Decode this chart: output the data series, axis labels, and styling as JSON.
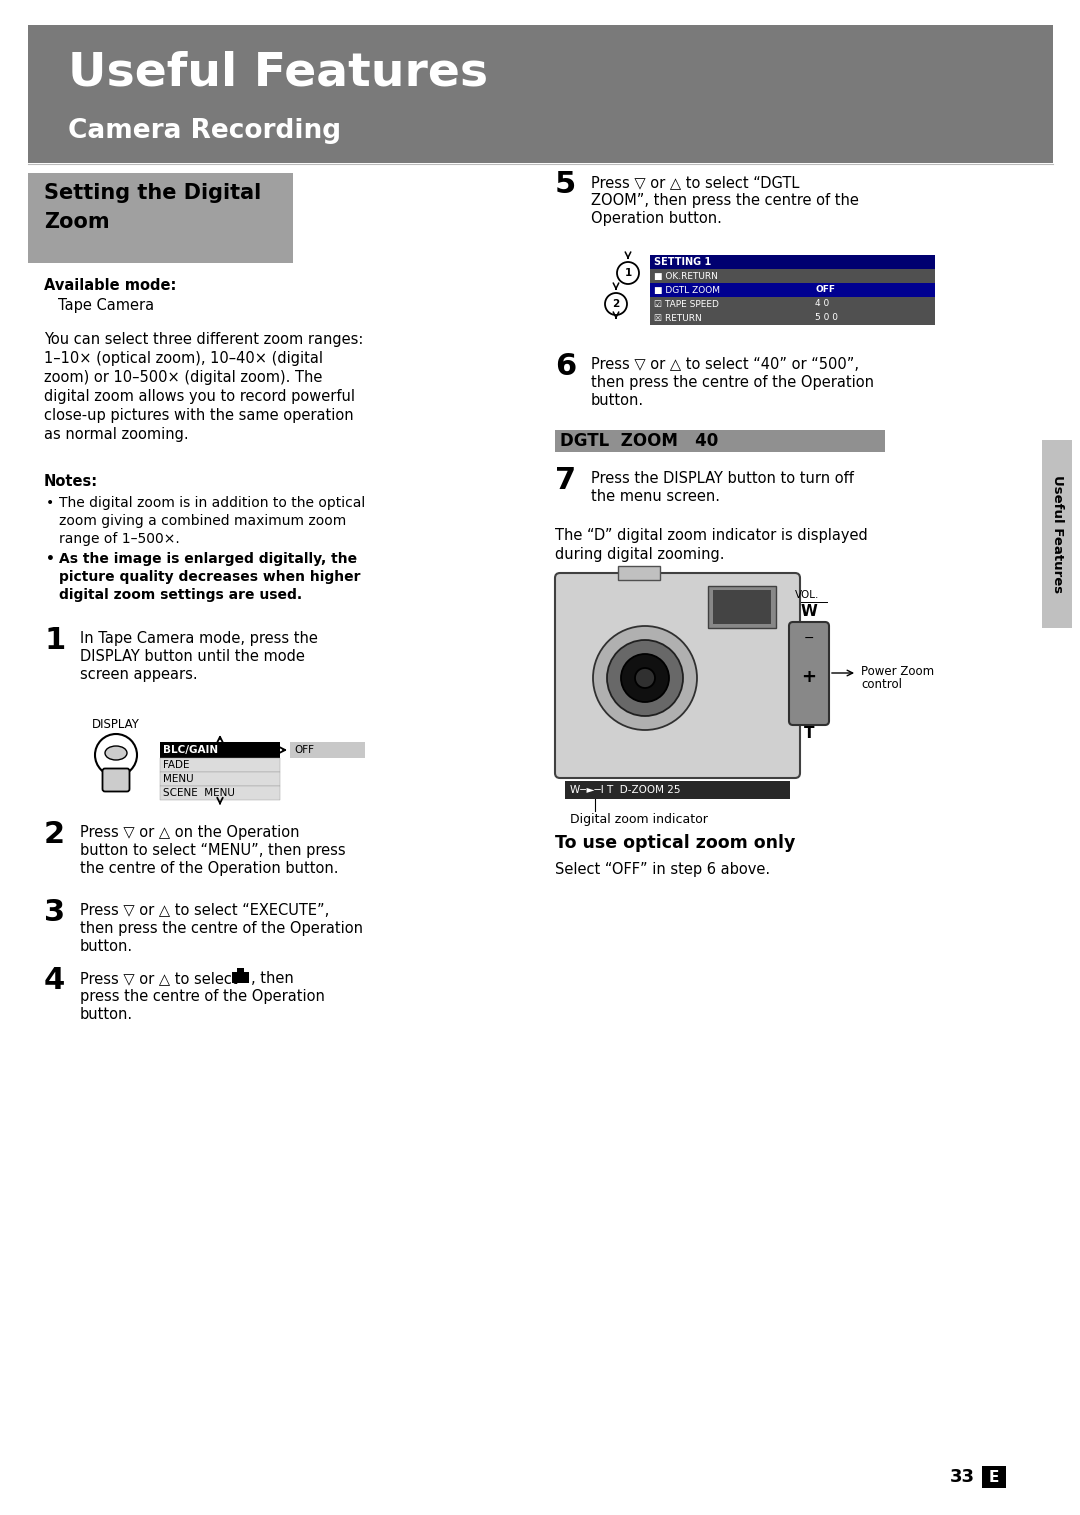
{
  "bg_color": "#ffffff",
  "header_bg": "#7a7a7a",
  "header_title": "Useful Features",
  "header_subtitle": "Camera Recording",
  "section_bg": "#a0a0a0",
  "section_title_line1": "Setting the Digital",
  "section_title_line2": "Zoom",
  "available_mode_label": "Available mode:",
  "available_mode_value": "Tape Camera",
  "body_text_lines": [
    "You can select three different zoom ranges:",
    "1–10× (optical zoom), 10–40× (digital",
    "zoom) or 10–500× (digital zoom). The",
    "digital zoom allows you to record powerful",
    "close-up pictures with the same operation",
    "as normal zooming."
  ],
  "notes_label": "Notes:",
  "note1_lines": [
    "The digital zoom is in addition to the optical",
    "zoom giving a combined maximum zoom",
    "range of 1–500×."
  ],
  "note2_lines": [
    "As the image is enlarged digitally, the",
    "picture quality decreases when higher",
    "digital zoom settings are used."
  ],
  "step1_lines": [
    "In Tape Camera mode, press the",
    "DISPLAY button until the mode",
    "screen appears."
  ],
  "step2_lines": [
    "Press ▽ or △ on the Operation",
    "button to select “MENU”, then press",
    "the centre of the Operation button."
  ],
  "step3_lines": [
    "Press ▽ or △ to select “EXECUTE”,",
    "then press the centre of the Operation",
    "button."
  ],
  "step4_line1": "Press ▽ or △ to select",
  "step4_line2": ", then",
  "step4_line3": "press the centre of the Operation",
  "step4_line4": "button.",
  "step5_lines": [
    "Press ▽ or △ to select “DGTL",
    "ZOOM”, then press the centre of the",
    "Operation button."
  ],
  "step6_lines": [
    "Press ▽ or △ to select “40” or “500”,",
    "then press the centre of the Operation",
    "button."
  ],
  "step7_lines": [
    "Press the DISPLAY button to turn off",
    "the menu screen."
  ],
  "dgtl_bar_text": "DGTL  ZOOM   40",
  "digital_indicator_lines": [
    "The “D” digital zoom indicator is displayed",
    "during digital zooming."
  ],
  "digital_zoom_indicator_label": "Digital zoom indicator",
  "power_zoom_label1": "Power Zoom",
  "power_zoom_label2": "control",
  "optical_title": "To use optical zoom only",
  "optical_text": "Select “OFF” in step 6 above.",
  "sidebar_text": "Useful Features",
  "page_num": "33",
  "menu_display_rows": [
    "FADE",
    "MENU",
    "SCENE  MENU"
  ],
  "setting1_title": "SETTING 1",
  "setting1_row2": "OK.RETURN",
  "setting1_row3_key": "DGTL ZOOM",
  "setting1_row3_val": "OFF",
  "setting1_row4_key": "TAPE SPEED",
  "setting1_row4_val": "4 0",
  "setting1_row5_key": "RETURN",
  "setting1_row5_val": "5 0 0"
}
